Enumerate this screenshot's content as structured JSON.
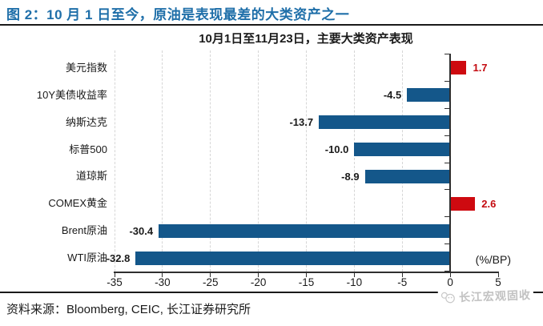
{
  "header": {
    "figure_title": "图 2：10 月 1 日至今，原油是表现最差的大类资产之一"
  },
  "chart_data": {
    "type": "bar",
    "orientation": "horizontal",
    "title": "10月1日至11月23日，主要大类资产表现",
    "unit_label": "(%/BP)",
    "categories": [
      "美元指数",
      "10Y美债收益率",
      "纳斯达克",
      "标普500",
      "道琼斯",
      "COMEX黄金",
      "Brent原油",
      "WTI原油"
    ],
    "values": [
      1.7,
      -4.5,
      -13.7,
      -10.0,
      -8.9,
      2.6,
      -30.4,
      -32.8
    ],
    "value_labels": [
      "1.7",
      "-4.5",
      "-13.7",
      "-10.0",
      "-8.9",
      "2.6",
      "-30.4",
      "-32.8"
    ],
    "xlim": [
      -35,
      5
    ],
    "x_ticks": [
      -35,
      -30,
      -25,
      -20,
      -15,
      -10,
      -5,
      0,
      5
    ],
    "grid": "vertical-dashed-at-negative-ticks",
    "legend": "none",
    "bar_color_rule": "positive bars red, negative bars blue; value labels of positive bars red, negative black"
  },
  "colors": {
    "title_blue": "#1F6FA9",
    "bar_negative_blue": "#14578A",
    "bar_positive_red": "#CE0A10",
    "value_label_red": "#C40A10",
    "value_label_black": "#1a1a1a",
    "grid_gray": "#D6D6D6",
    "axis_black": "#2F2F2F",
    "watermark_gray": "#C2C2C2"
  },
  "footer": {
    "source_text": "资料来源：Bloomberg, CEIC, 长江证券研究所",
    "watermark_text": "长江宏观固收"
  }
}
